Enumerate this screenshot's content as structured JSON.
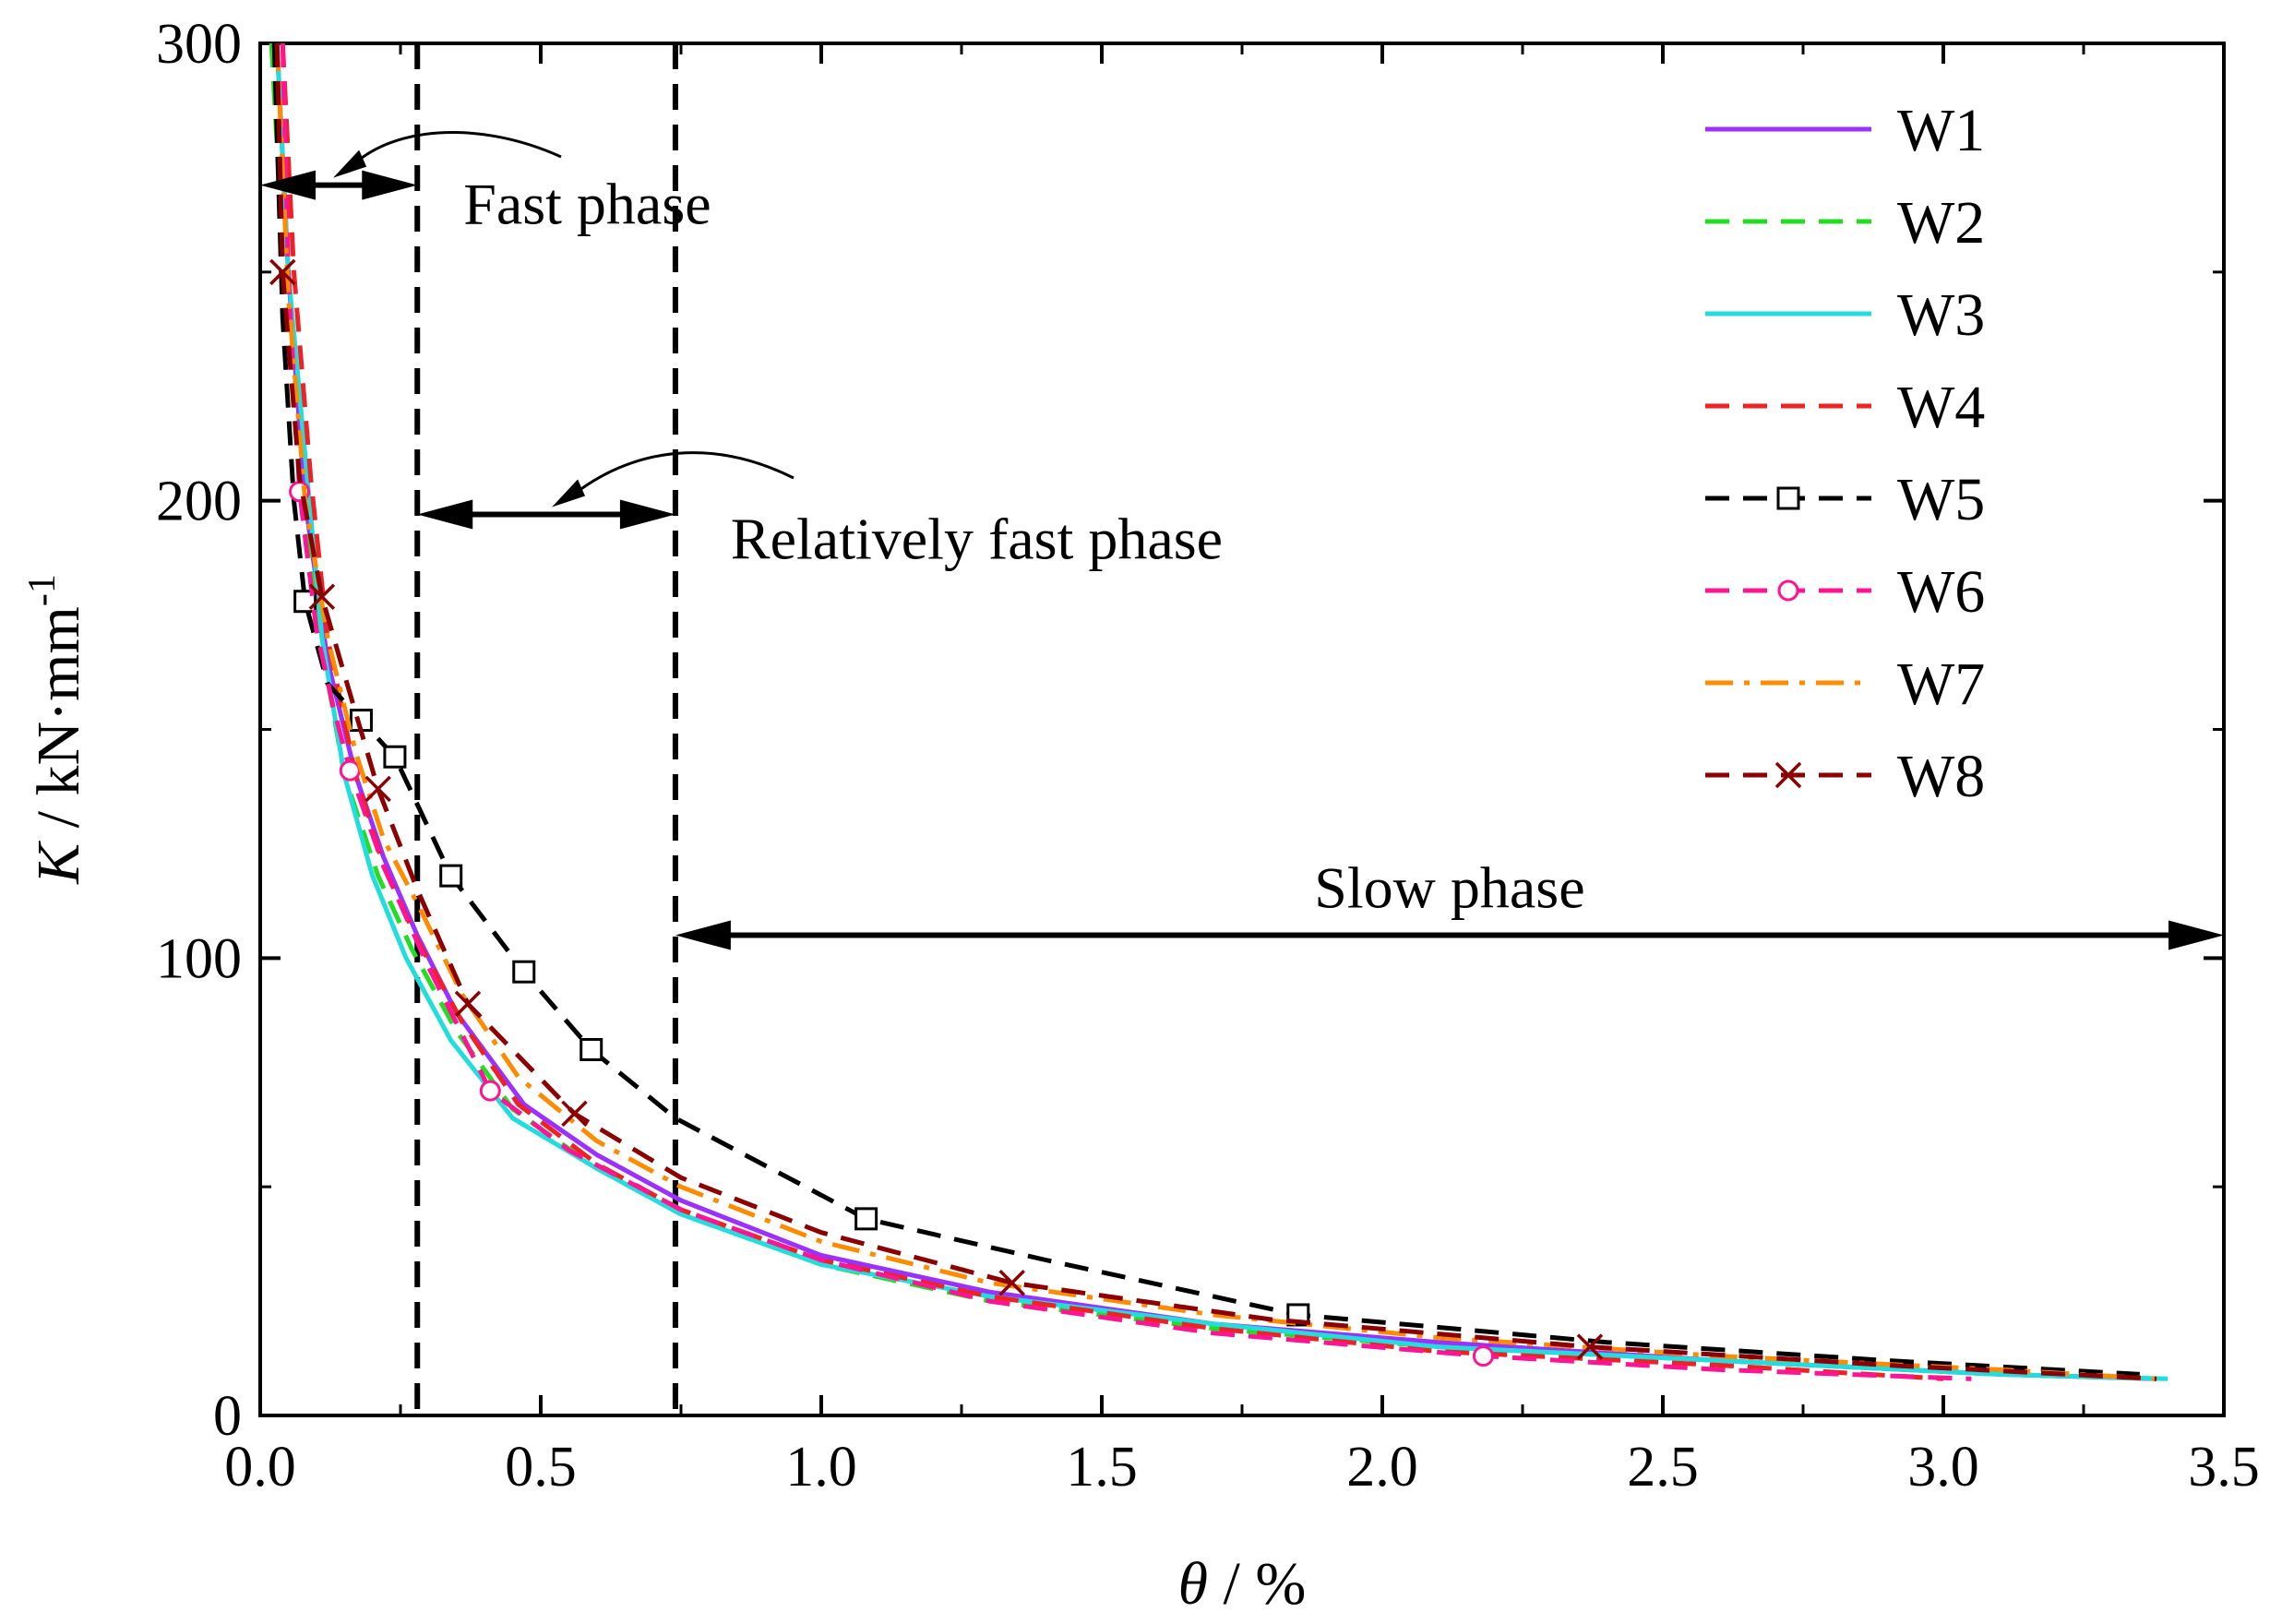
{
  "chart_data": {
    "type": "line",
    "xlabel_symbol": "θ",
    "xlabel_unit": " / %",
    "ylabel_symbol": "K",
    "ylabel_unit": " / kN·mm",
    "ylabel_exp": "-1",
    "xlim": [
      0,
      3.5
    ],
    "ylim": [
      0,
      300
    ],
    "x_ticks": [
      0.0,
      0.5,
      1.0,
      1.5,
      2.0,
      2.5,
      3.0,
      3.5
    ],
    "x_tick_labels": [
      "0.0",
      "0.5",
      "1.0",
      "1.5",
      "2.0",
      "2.5",
      "3.0",
      "3.5"
    ],
    "y_ticks": [
      0,
      100,
      200,
      300
    ],
    "y_tick_labels": [
      "0",
      "100",
      "200",
      "300"
    ],
    "legend_position": "top-right",
    "series": [
      {
        "name": "W1",
        "color": "#9b30ff",
        "dash": "solid",
        "marker": "none",
        "x": [
          0.03,
          0.05,
          0.08,
          0.12,
          0.17,
          0.22,
          0.28,
          0.35,
          0.47,
          0.6,
          0.75,
          1.0,
          1.3,
          1.7,
          2.1,
          2.6,
          3.1,
          3.38
        ],
        "y": [
          300,
          250,
          200,
          165,
          140,
          122,
          105,
          88,
          68,
          57,
          47,
          35,
          27,
          20,
          16,
          12,
          9,
          8
        ]
      },
      {
        "name": "W2",
        "color": "#22dd22",
        "dash": "dash",
        "marker": "none",
        "x": [
          0.02,
          0.04,
          0.07,
          0.1,
          0.15,
          0.21,
          0.27,
          0.35,
          0.45,
          0.6,
          0.75,
          1.0,
          1.3,
          1.7,
          2.1,
          2.6,
          3.1,
          3.38
        ],
        "y": [
          300,
          255,
          205,
          175,
          140,
          118,
          102,
          84,
          67,
          54,
          44,
          33,
          25,
          19,
          15,
          12,
          9,
          8
        ]
      },
      {
        "name": "W3",
        "color": "#22dddd",
        "dash": "solid",
        "marker": "none",
        "x": [
          0.03,
          0.05,
          0.08,
          0.11,
          0.15,
          0.2,
          0.26,
          0.34,
          0.45,
          0.6,
          0.75,
          1.0,
          1.3,
          1.7,
          2.1,
          2.6,
          3.1,
          3.4
        ],
        "y": [
          300,
          250,
          210,
          170,
          140,
          118,
          100,
          82,
          65,
          54,
          44,
          33,
          26,
          20,
          15,
          12,
          9,
          8
        ]
      },
      {
        "name": "W4",
        "color": "#ee2222",
        "dash": "dash",
        "marker": "none",
        "x": [
          0.04,
          0.06,
          0.09,
          0.12,
          0.17,
          0.22,
          0.28,
          0.36,
          0.46,
          0.6,
          0.75,
          1.0,
          1.3,
          1.7,
          2.1,
          2.6,
          3.0
        ],
        "y": [
          300,
          250,
          205,
          170,
          140,
          120,
          104,
          86,
          68,
          55,
          45,
          34,
          26,
          19,
          14,
          11,
          8
        ]
      },
      {
        "name": "W5",
        "color": "#000000",
        "dash": "dash",
        "marker": "square",
        "x": [
          0.025,
          0.04,
          0.06,
          0.08,
          0.12,
          0.18,
          0.24,
          0.34,
          0.47,
          0.59,
          0.74,
          1.08,
          1.4,
          1.85,
          2.4,
          2.9,
          3.35
        ],
        "y": [
          300,
          240,
          200,
          178,
          160,
          152,
          144,
          118,
          97,
          80,
          65,
          43,
          34,
          22,
          16,
          12,
          9
        ],
        "marker_x": [
          0.08,
          0.18,
          0.24,
          0.34,
          0.47,
          0.59,
          1.08,
          1.85
        ],
        "marker_y": [
          178,
          152,
          144,
          118,
          97,
          80,
          43,
          22
        ]
      },
      {
        "name": "W6",
        "color": "#ff1493",
        "dash": "dash",
        "marker": "circle",
        "x": [
          0.04,
          0.05,
          0.07,
          0.1,
          0.13,
          0.16,
          0.22,
          0.3,
          0.41,
          0.55,
          0.75,
          1.0,
          1.3,
          1.7,
          2.18,
          2.6,
          3.05
        ],
        "y": [
          300,
          250,
          202,
          172,
          155,
          141,
          120,
          98,
          71,
          58,
          45,
          34,
          25,
          18,
          13,
          10,
          8
        ],
        "marker_x": [
          0.07,
          0.16,
          0.41,
          2.18
        ],
        "marker_y": [
          202,
          141,
          71,
          13
        ]
      },
      {
        "name": "W7",
        "color": "#ff8c00",
        "dash": "dashdot",
        "marker": "none",
        "x": [
          0.03,
          0.05,
          0.08,
          0.12,
          0.17,
          0.22,
          0.28,
          0.36,
          0.46,
          0.6,
          0.75,
          1.0,
          1.3,
          1.7,
          2.1,
          2.6,
          3.1,
          3.38
        ],
        "y": [
          300,
          245,
          200,
          170,
          145,
          126,
          112,
          92,
          74,
          60,
          50,
          38,
          29,
          22,
          17,
          13,
          10,
          8
        ]
      },
      {
        "name": "W8",
        "color": "#8b0000",
        "dash": "dash",
        "marker": "x",
        "x": [
          0.03,
          0.04,
          0.07,
          0.11,
          0.15,
          0.21,
          0.28,
          0.37,
          0.56,
          0.75,
          1.0,
          1.34,
          1.8,
          2.37,
          2.9,
          3.38
        ],
        "y": [
          300,
          250,
          205,
          179,
          162,
          137,
          115,
          90,
          66,
          52,
          40,
          29,
          21,
          15,
          11,
          8
        ],
        "marker_x": [
          0.04,
          0.11,
          0.21,
          0.37,
          0.56,
          1.34,
          2.37
        ],
        "marker_y": [
          250,
          179,
          137,
          90,
          66,
          29,
          15
        ]
      }
    ],
    "vertical_lines_x": [
      0.28,
      0.74
    ],
    "annotations": {
      "fast": {
        "text": "Fast phase",
        "x_from": 0.0,
        "x_to": 0.28,
        "y": 269
      },
      "relative": {
        "text": "Relatively fast phase",
        "x_from": 0.28,
        "x_to": 0.74,
        "y": 197
      },
      "slow": {
        "text": "Slow phase",
        "x_from": 0.74,
        "x_to": 3.5,
        "y": 105
      }
    }
  }
}
